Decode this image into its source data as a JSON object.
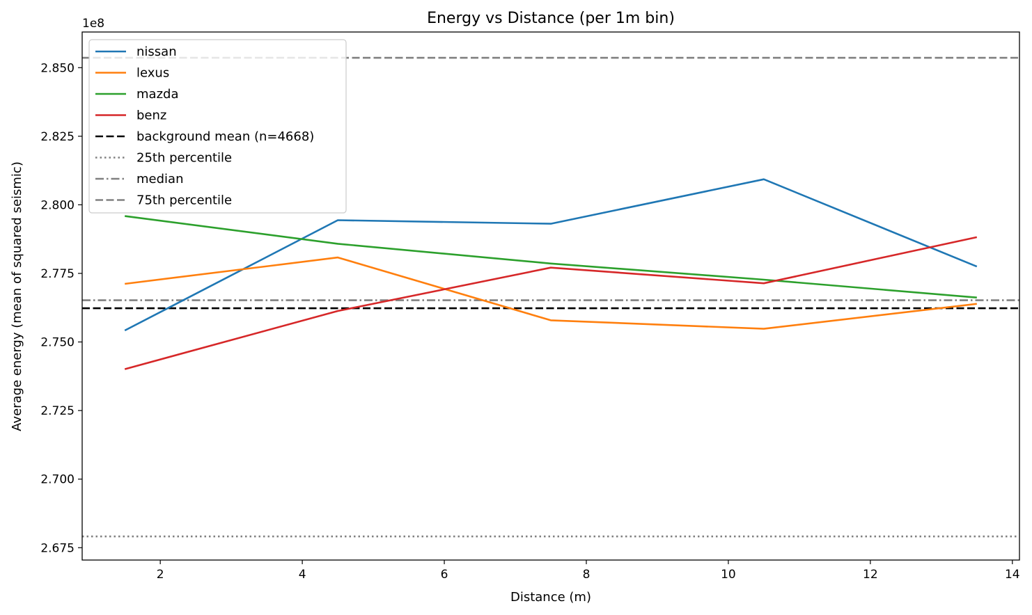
{
  "chart_data": {
    "type": "line",
    "title": "Energy vs Distance (per 1m bin)",
    "xlabel": "Distance (m)",
    "ylabel": "Average energy (mean of squared seismic)",
    "y_offset_label": "1e8",
    "xlim": [
      0.9,
      14.1
    ],
    "ylim": [
      2.6705,
      2.863
    ],
    "x_ticks": [
      2,
      4,
      6,
      8,
      10,
      12,
      14
    ],
    "x_tick_labels": [
      "2",
      "4",
      "6",
      "8",
      "10",
      "12",
      "14"
    ],
    "y_ticks": [
      2.675,
      2.7,
      2.725,
      2.75,
      2.775,
      2.8,
      2.825,
      2.85
    ],
    "y_tick_labels": [
      "2.675",
      "2.700",
      "2.725",
      "2.750",
      "2.775",
      "2.800",
      "2.825",
      "2.850"
    ],
    "grid": false,
    "legend_position": "upper-left",
    "x": [
      1.5,
      4.5,
      7.5,
      10.5,
      13.5
    ],
    "series": [
      {
        "name": "nissan",
        "color": "#1f77b4",
        "values": [
          2.7542,
          2.7944,
          2.7931,
          2.8093,
          2.7775
        ]
      },
      {
        "name": "lexus",
        "color": "#ff7f0e",
        "values": [
          2.7712,
          2.7808,
          2.7579,
          2.7548,
          2.7639
        ]
      },
      {
        "name": "mazda",
        "color": "#2ca02c",
        "values": [
          2.7959,
          2.7858,
          2.7786,
          2.7727,
          2.7662
        ]
      },
      {
        "name": "benz",
        "color": "#d62728",
        "values": [
          2.7401,
          2.7613,
          2.7771,
          2.7714,
          2.7882
        ]
      }
    ],
    "reference_lines": [
      {
        "name": "background mean (n=4668)",
        "value": 2.7623,
        "color": "#000000",
        "style": "dashed"
      },
      {
        "name": "25th percentile",
        "value": 2.6791,
        "color": "#808080",
        "style": "dotted"
      },
      {
        "name": "median",
        "value": 2.7652,
        "color": "#808080",
        "style": "dashdot"
      },
      {
        "name": "75th percentile",
        "value": 2.8536,
        "color": "#808080",
        "style": "dashed"
      }
    ]
  }
}
